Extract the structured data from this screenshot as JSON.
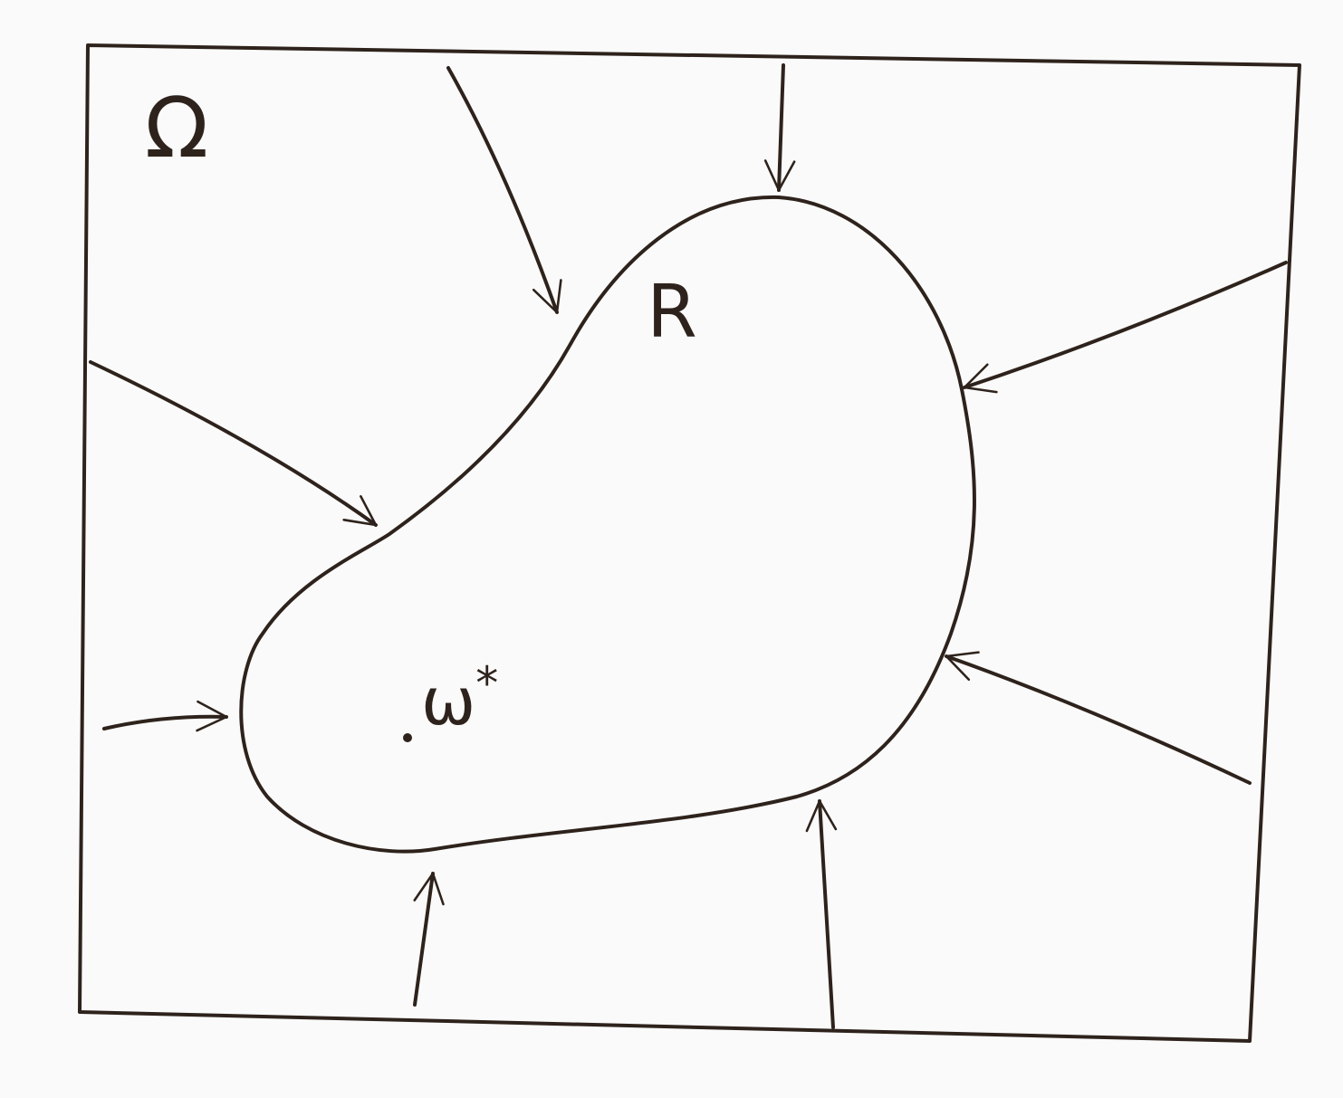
{
  "domain_label": "Ω",
  "region_label": "R",
  "point_label": "ω",
  "point_superscript": "*"
}
